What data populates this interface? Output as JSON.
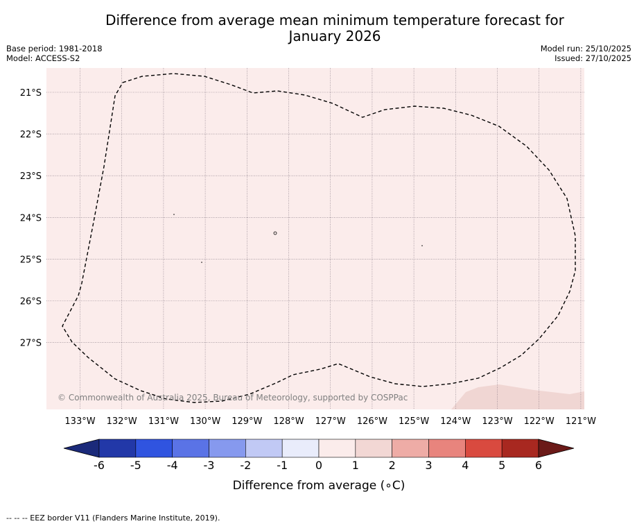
{
  "header": {
    "title_line1": "Difference from average mean minimum temperature forecast for",
    "title_line2": "January 2026",
    "base_period": "Base period: 1981-2018",
    "model": "Model: ACCESS-S2",
    "model_run": "Model run: 25/10/2025",
    "issued": "Issued: 27/10/2025"
  },
  "map": {
    "lat_labels": [
      "21°S",
      "22°S",
      "23°S",
      "24°S",
      "25°S",
      "26°S",
      "27°S"
    ],
    "lon_labels": [
      "133°W",
      "132°W",
      "131°W",
      "130°W",
      "129°W",
      "128°W",
      "127°W",
      "126°W",
      "125°W",
      "124°W",
      "123°W",
      "122°W",
      "121°W"
    ],
    "copyright": "© Commonwealth of Australia 2025, Bureau of Meteorology, supported by COSPPac",
    "background_color": "#fbeceb",
    "anomaly_patch_color": "#f0d6d3",
    "border_style": "dashed"
  },
  "colorbar": {
    "ticks": [
      "-6",
      "-5",
      "-4",
      "-3",
      "-2",
      "-1",
      "0",
      "1",
      "2",
      "3",
      "4",
      "5",
      "6"
    ],
    "label": "Difference from average (∘C)",
    "low_extend_color": "#1b2a7a",
    "high_extend_color": "#6b1a18",
    "colors": [
      "#2238a8",
      "#3054e0",
      "#5a73e6",
      "#8699ee",
      "#c1c9f5",
      "#e9ecfb",
      "#fbeceb",
      "#f2d7d4",
      "#eeaca6",
      "#e8847d",
      "#d94a3f",
      "#a82820"
    ]
  },
  "footnote": "--  --  -- EEZ border V11 (Flanders Marine Institute, 2019)."
}
